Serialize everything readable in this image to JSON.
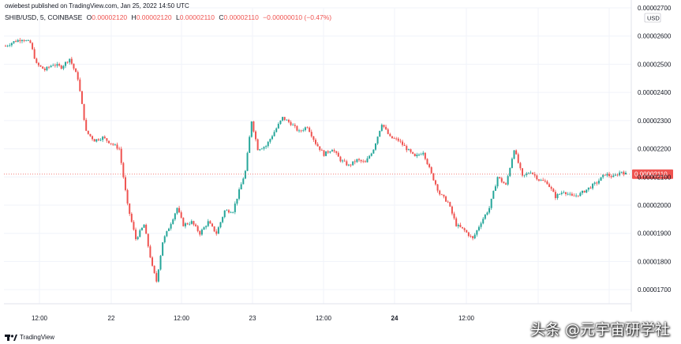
{
  "header": {
    "published": "owiebest published on TradingView.com, Jan 25, 2022 14:50 UTC",
    "symbol_line": "SHIB/USD, 5, COINBASE",
    "o_label": "O",
    "o_value": "0.00002120",
    "h_label": "H",
    "h_value": "0.00002120",
    "l_label": "L",
    "l_value": "0.00002110",
    "c_label": "C",
    "c_value": "0.00002110",
    "change": "−0.00000010 (−0.47%)"
  },
  "footer": {
    "brand": "TradingView"
  },
  "watermark": "头条 @元宇宙研学社",
  "colors": {
    "up": "#26a69a",
    "down": "#ef5350",
    "grid": "#f0f3fa",
    "axis_text": "#131722"
  },
  "chart_data": {
    "type": "candlestick",
    "y_unit_label": "USD",
    "ylim": [
      1.65e-05,
      2.7e-05
    ],
    "y_ticks": [
      "0.00002700",
      "0.00002600",
      "0.00002500",
      "0.00002400",
      "0.00002300",
      "0.00002200",
      "0.00002100",
      "0.00002000",
      "0.00001900",
      "0.00001800",
      "0.00001700"
    ],
    "x_ticks": [
      "12:00",
      "22",
      "12:00",
      "23",
      "12:00",
      "24",
      "12:00"
    ],
    "x_tick_bold": [
      false,
      false,
      false,
      false,
      false,
      true,
      false
    ],
    "last_price": "0.00002110",
    "last_price_value": 2.11e-05,
    "close_path": [
      [
        0,
        2.565
      ],
      [
        4,
        2.58
      ],
      [
        8,
        2.59
      ],
      [
        12,
        2.575
      ],
      [
        15,
        2.5
      ],
      [
        19,
        2.48
      ],
      [
        23,
        2.5
      ],
      [
        27,
        2.49
      ],
      [
        31,
        2.52
      ],
      [
        35,
        2.45
      ],
      [
        39,
        2.26
      ],
      [
        43,
        2.23
      ],
      [
        47,
        2.24
      ],
      [
        51,
        2.22
      ],
      [
        55,
        2.2
      ],
      [
        59,
        2.0
      ],
      [
        63,
        1.88
      ],
      [
        67,
        1.93
      ],
      [
        71,
        1.78
      ],
      [
        73,
        1.73
      ],
      [
        76,
        1.87
      ],
      [
        79,
        1.92
      ],
      [
        83,
        1.99
      ],
      [
        86,
        1.93
      ],
      [
        90,
        1.94
      ],
      [
        94,
        1.9
      ],
      [
        98,
        1.94
      ],
      [
        102,
        1.9
      ],
      [
        106,
        1.98
      ],
      [
        110,
        1.98
      ],
      [
        113,
        2.05
      ],
      [
        116,
        2.12
      ],
      [
        119,
        2.3
      ],
      [
        122,
        2.2
      ],
      [
        126,
        2.21
      ],
      [
        130,
        2.26
      ],
      [
        134,
        2.31
      ],
      [
        138,
        2.29
      ],
      [
        142,
        2.26
      ],
      [
        146,
        2.28
      ],
      [
        150,
        2.22
      ],
      [
        154,
        2.18
      ],
      [
        158,
        2.2
      ],
      [
        162,
        2.16
      ],
      [
        166,
        2.14
      ],
      [
        170,
        2.16
      ],
      [
        174,
        2.15
      ],
      [
        178,
        2.2
      ],
      [
        182,
        2.29
      ],
      [
        186,
        2.24
      ],
      [
        190,
        2.23
      ],
      [
        194,
        2.2
      ],
      [
        198,
        2.17
      ],
      [
        202,
        2.19
      ],
      [
        206,
        2.11
      ],
      [
        210,
        2.04
      ],
      [
        214,
        2.01
      ],
      [
        218,
        1.93
      ],
      [
        222,
        1.91
      ],
      [
        226,
        1.88
      ],
      [
        230,
        1.94
      ],
      [
        234,
        1.99
      ],
      [
        238,
        2.1
      ],
      [
        242,
        2.07
      ],
      [
        246,
        2.2
      ],
      [
        250,
        2.1
      ],
      [
        254,
        2.12
      ],
      [
        258,
        2.09
      ],
      [
        262,
        2.08
      ],
      [
        266,
        2.03
      ],
      [
        270,
        2.05
      ],
      [
        274,
        2.03
      ],
      [
        278,
        2.04
      ],
      [
        282,
        2.06
      ],
      [
        286,
        2.08
      ],
      [
        290,
        2.11
      ],
      [
        294,
        2.1
      ],
      [
        298,
        2.12
      ],
      [
        300,
        2.11
      ]
    ]
  }
}
